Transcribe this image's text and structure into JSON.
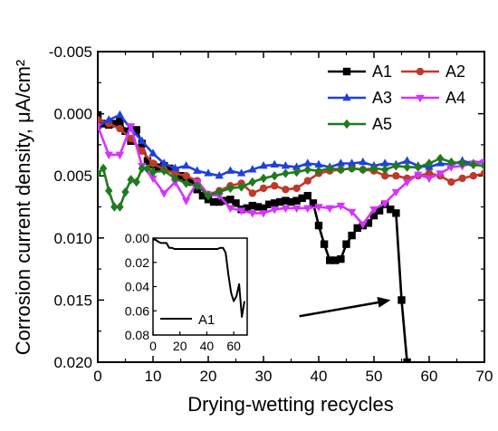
{
  "chart_data": [
    {
      "type": "line",
      "title": "",
      "xlabel": "Drying-wetting recycles",
      "ylabel": "Corrosion current density, μA/cm²",
      "xlim": [
        0,
        70
      ],
      "ylim": [
        -0.005,
        0.02
      ],
      "y_inverted": true,
      "x_ticks": [
        "0",
        "10",
        "20",
        "30",
        "40",
        "50",
        "60",
        "70"
      ],
      "y_ticks": [
        "-0.005",
        "0.000",
        "0.005",
        "0.010",
        "0.015",
        "0.020"
      ],
      "grid": false,
      "legend_position": "top-right",
      "series": [
        {
          "name": "A1",
          "color": "#000000",
          "marker": "square",
          "x": [
            0,
            1,
            2,
            3,
            4,
            5,
            6,
            7,
            8,
            9,
            10,
            11,
            12,
            13,
            14,
            15,
            16,
            17,
            18,
            19,
            20,
            21,
            22,
            23,
            24,
            25,
            26,
            27,
            28,
            29,
            30,
            31,
            32,
            33,
            34,
            35,
            36,
            37,
            38,
            39,
            40,
            41,
            42,
            43,
            44,
            45,
            46,
            47,
            48,
            49,
            50,
            51,
            52,
            53,
            54,
            55,
            56
          ],
          "y": [
            0.0001,
            0.0008,
            0.0009,
            0.0008,
            0.0006,
            0.0014,
            0.0022,
            0.0013,
            0.0024,
            0.0038,
            0.0041,
            0.0043,
            0.0042,
            0.0044,
            0.0046,
            0.005,
            0.0052,
            0.0055,
            0.0061,
            0.0066,
            0.0069,
            0.0071,
            0.0071,
            0.007,
            0.0069,
            0.0072,
            0.0077,
            0.0076,
            0.0074,
            0.0075,
            0.0076,
            0.0073,
            0.0072,
            0.0071,
            0.007,
            0.0071,
            0.007,
            0.0068,
            0.0066,
            0.0072,
            0.009,
            0.0105,
            0.0118,
            0.0118,
            0.0117,
            0.0105,
            0.0098,
            0.0092,
            0.009,
            0.0088,
            0.0082,
            0.0078,
            0.0073,
            0.0077,
            0.008,
            0.015,
            0.02
          ]
        },
        {
          "name": "A2",
          "color": "#c0392b",
          "marker": "circle",
          "x": [
            0,
            2,
            4,
            6,
            8,
            10,
            12,
            14,
            16,
            18,
            20,
            22,
            24,
            26,
            28,
            30,
            32,
            34,
            36,
            38,
            40,
            42,
            44,
            46,
            48,
            50,
            52,
            54,
            56,
            58,
            60,
            62,
            64,
            66,
            68,
            70
          ],
          "y": [
            0.0005,
            0.0008,
            0.0012,
            0.002,
            0.003,
            0.004,
            0.0045,
            0.0048,
            0.005,
            0.0054,
            0.0065,
            0.0062,
            0.0058,
            0.0056,
            0.0064,
            0.006,
            0.0058,
            0.0061,
            0.006,
            0.0054,
            0.0048,
            0.0046,
            0.0045,
            0.0044,
            0.0045,
            0.0046,
            0.005,
            0.005,
            0.0052,
            0.005,
            0.0048,
            0.005,
            0.0055,
            0.0052,
            0.005,
            0.0048
          ]
        },
        {
          "name": "A3",
          "color": "#1f3fe0",
          "marker": "triangle-up",
          "x": [
            0,
            2,
            4,
            6,
            8,
            10,
            12,
            14,
            16,
            18,
            20,
            22,
            24,
            26,
            28,
            30,
            32,
            34,
            36,
            38,
            40,
            42,
            44,
            46,
            48,
            50,
            52,
            54,
            56,
            58,
            60,
            62,
            64,
            66,
            68,
            70
          ],
          "y": [
            0.001,
            0.0005,
            0.0001,
            0.0012,
            0.0022,
            0.0032,
            0.004,
            0.0044,
            0.0042,
            0.0046,
            0.0048,
            0.005,
            0.0046,
            0.0048,
            0.0045,
            0.0042,
            0.0041,
            0.0042,
            0.0043,
            0.004,
            0.0041,
            0.0043,
            0.004,
            0.004,
            0.0039,
            0.0042,
            0.004,
            0.0041,
            0.0038,
            0.0042,
            0.0043,
            0.004,
            0.0041,
            0.0038,
            0.004,
            0.0038
          ]
        },
        {
          "name": "A4",
          "color": "#d633ff",
          "marker": "triangle-down",
          "x": [
            0,
            2,
            4,
            6,
            8,
            10,
            12,
            14,
            16,
            18,
            20,
            22,
            24,
            26,
            28,
            30,
            32,
            34,
            36,
            38,
            40,
            42,
            44,
            46,
            48,
            50,
            52,
            54,
            56,
            58,
            60,
            62,
            64,
            66,
            68,
            70
          ],
          "y": [
            0.001,
            0.0033,
            0.0033,
            0.001,
            0.0042,
            0.0052,
            0.0064,
            0.0055,
            0.007,
            0.0055,
            0.0065,
            0.0066,
            0.0076,
            0.0078,
            0.008,
            0.008,
            0.0077,
            0.0076,
            0.0076,
            0.0076,
            0.0075,
            0.0076,
            0.0074,
            0.0079,
            0.0089,
            0.0077,
            0.0072,
            0.0063,
            0.0055,
            0.0049,
            0.0052,
            0.0048,
            0.0043,
            0.0042,
            0.004,
            0.0039
          ]
        },
        {
          "name": "A5",
          "color": "#1e7b1e",
          "marker": "diamond",
          "x": [
            0,
            1,
            2,
            3,
            4,
            5,
            6,
            7,
            8,
            9,
            10,
            12,
            14,
            16,
            18,
            20,
            22,
            24,
            26,
            28,
            30,
            32,
            34,
            36,
            38,
            40,
            42,
            44,
            46,
            48,
            50,
            52,
            54,
            56,
            58,
            60,
            62,
            64,
            66,
            68,
            70
          ],
          "y": [
            0.0048,
            0.0044,
            0.0062,
            0.0075,
            0.0075,
            0.0063,
            0.0053,
            0.0055,
            0.0044,
            0.0044,
            0.0047,
            0.0046,
            0.0052,
            0.0056,
            0.0058,
            0.0066,
            0.0063,
            0.006,
            0.0059,
            0.0055,
            0.0052,
            0.005,
            0.0048,
            0.0047,
            0.0045,
            0.0046,
            0.0044,
            0.0045,
            0.0044,
            0.0045,
            0.0044,
            0.0045,
            0.0042,
            0.0043,
            0.0043,
            0.004,
            0.0036,
            0.0039,
            0.004,
            0.0041,
            0.0042
          ]
        }
      ],
      "annotations": [
        {
          "type": "arrow",
          "from": [
            36.5,
            0.0163
          ],
          "to": [
            53,
            0.015
          ]
        }
      ]
    },
    {
      "type": "line",
      "title": "",
      "xlabel": "",
      "ylabel": "",
      "xlim": [
        0,
        70
      ],
      "ylim": [
        0,
        0.08
      ],
      "y_inverted": true,
      "x_ticks": [
        "0",
        "20",
        "40",
        "60"
      ],
      "y_ticks": [
        "0.00",
        "0.02",
        "0.04",
        "0.06",
        "0.08"
      ],
      "legend_position": "bottom-left",
      "series": [
        {
          "name": "A1",
          "color": "#000000",
          "x": [
            0,
            2,
            4,
            6,
            8,
            10,
            12,
            14,
            16,
            18,
            20,
            22,
            24,
            26,
            28,
            30,
            32,
            34,
            36,
            38,
            40,
            42,
            44,
            46,
            48,
            50,
            52,
            54,
            56,
            58,
            60,
            62,
            64,
            66,
            68
          ],
          "y": [
            0.001,
            0.0015,
            0.003,
            0.004,
            0.004,
            0.004,
            0.008,
            0.008,
            0.009,
            0.009,
            0.009,
            0.009,
            0.009,
            0.009,
            0.009,
            0.009,
            0.009,
            0.009,
            0.009,
            0.009,
            0.009,
            0.009,
            0.009,
            0.009,
            0.009,
            0.008,
            0.008,
            0.012,
            0.03,
            0.045,
            0.052,
            0.048,
            0.038,
            0.065,
            0.052
          ]
        }
      ]
    }
  ]
}
